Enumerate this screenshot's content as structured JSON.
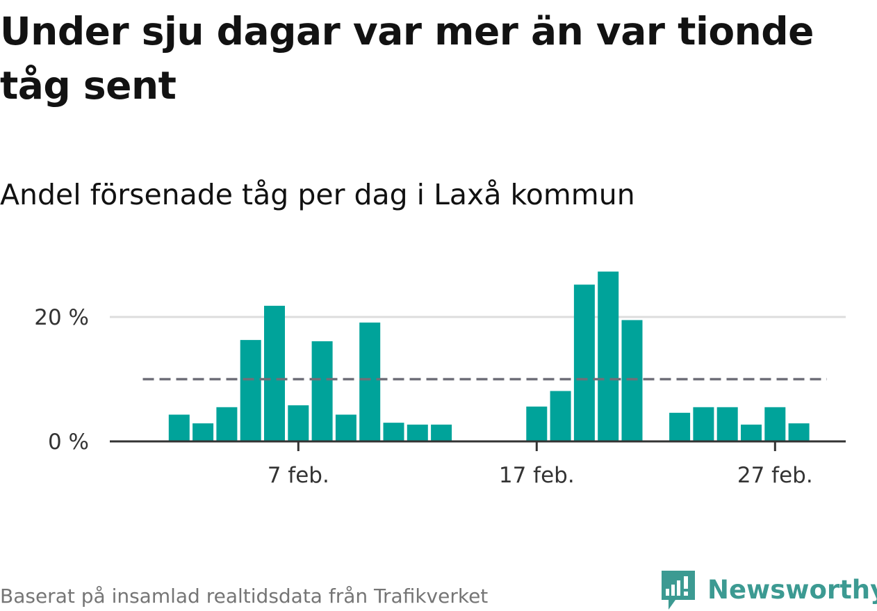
{
  "header": {
    "title": "Under sju dagar var mer än var tionde tåg sent",
    "subtitle": "Andel försenade tåg per dag i Laxå kommun"
  },
  "footer": {
    "source": "Baserat på insamlad realtidsdata från Trafikverket",
    "brand": "Newsworthy"
  },
  "colors": {
    "bar": "#00a39a",
    "reference_line": "#6f6f78",
    "gridline": "#dddddd",
    "axis": "#333333",
    "brand": "#3c9a92"
  },
  "chart_data": {
    "type": "bar",
    "x_unit": "date",
    "categories": [
      "2024-02-01",
      "2024-02-02",
      "2024-02-03",
      "2024-02-04",
      "2024-02-05",
      "2024-02-06",
      "2024-02-07",
      "2024-02-08",
      "2024-02-09",
      "2024-02-10",
      "2024-02-11",
      "2024-02-12",
      "2024-02-13",
      "2024-02-14",
      "2024-02-15",
      "2024-02-16",
      "2024-02-17",
      "2024-02-18",
      "2024-02-19",
      "2024-02-20",
      "2024-02-21",
      "2024-02-22",
      "2024-02-23",
      "2024-02-24",
      "2024-02-25",
      "2024-02-26",
      "2024-02-27",
      "2024-02-28",
      "2024-02-29"
    ],
    "values": [
      null,
      4.3,
      2.9,
      5.5,
      16.3,
      21.8,
      5.8,
      16.1,
      4.3,
      19.1,
      3.0,
      2.7,
      2.7,
      null,
      null,
      null,
      5.6,
      8.1,
      25.2,
      27.3,
      19.5,
      null,
      4.6,
      5.5,
      5.5,
      2.7,
      5.5,
      2.9,
      null
    ],
    "reference_line": {
      "value": 10,
      "style": "dashed",
      "from": "2024-02-01",
      "to": "2024-02-29"
    },
    "ylim": [
      0,
      30
    ],
    "y_ticks": [
      {
        "value": 0,
        "label": "0 %"
      },
      {
        "value": 20,
        "label": "20 %"
      }
    ],
    "x_ticks": [
      {
        "value": "2024-02-07",
        "label": "7 feb."
      },
      {
        "value": "2024-02-17",
        "label": "17 feb."
      },
      {
        "value": "2024-02-27",
        "label": "27 feb."
      }
    ],
    "grid": true
  }
}
